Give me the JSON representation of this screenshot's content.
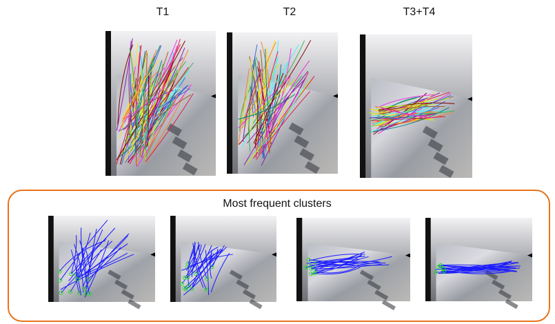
{
  "header": {
    "labels": [
      "T1",
      "T2",
      "T3+T4"
    ]
  },
  "clusters": {
    "title": "Most frequent clusters"
  }
}
